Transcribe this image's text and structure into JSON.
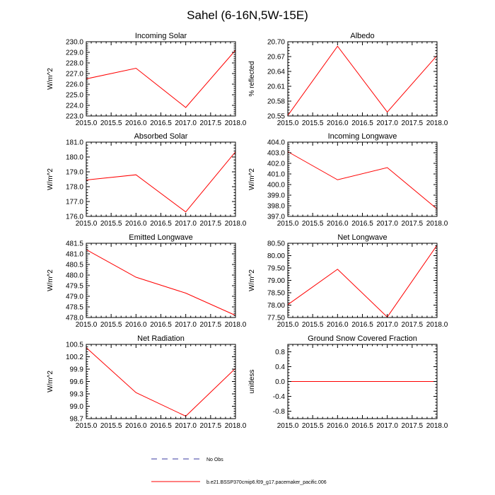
{
  "title": "Sahel (6-16N,5W-15E)",
  "colors": {
    "model": "#ff0000",
    "obs": "#3a3aa0",
    "axis": "#000000"
  },
  "legend": {
    "obs_label": "No Obs",
    "model_label": "b.e21.BSSP370cmip6.f09_g17.pacemaker_pacific.006"
  },
  "chart_data": [
    {
      "type": "line",
      "title": "Incoming Solar",
      "xlabel": "",
      "ylabel": "W/m^2",
      "x": [
        2015.0,
        2016.0,
        2017.0,
        2018.0
      ],
      "xlim": [
        2015.0,
        2018.0
      ],
      "xticks": [
        "2015.0",
        "2015.5",
        "2016.0",
        "2016.5",
        "2017.0",
        "2017.5",
        "2018.0"
      ],
      "ylim": [
        223.0,
        230.0
      ],
      "yticks": [
        "223.0",
        "224.0",
        "225.0",
        "226.0",
        "227.0",
        "228.0",
        "229.0",
        "230.0"
      ],
      "series": [
        {
          "values": [
            226.5,
            227.5,
            223.8,
            229.2
          ]
        }
      ]
    },
    {
      "type": "line",
      "title": "Albedo",
      "xlabel": "",
      "ylabel": "% reflected",
      "x": [
        2015.0,
        2016.0,
        2017.0,
        2018.0
      ],
      "xlim": [
        2015.0,
        2018.0
      ],
      "xticks": [
        "2015.0",
        "2015.5",
        "2016.0",
        "2016.5",
        "2017.0",
        "2017.5",
        "2018.0"
      ],
      "ylim": [
        20.55,
        20.7
      ],
      "yticks": [
        "20.55",
        "20.58",
        "20.61",
        "20.64",
        "20.67",
        "20.70"
      ],
      "series": [
        {
          "values": [
            20.551,
            20.691,
            20.558,
            20.672
          ]
        }
      ]
    },
    {
      "type": "line",
      "title": "Absorbed Solar",
      "xlabel": "",
      "ylabel": "W/m^2",
      "x": [
        2015.0,
        2016.0,
        2017.0,
        2018.0
      ],
      "xlim": [
        2015.0,
        2018.0
      ],
      "xticks": [
        "2015.0",
        "2015.5",
        "2016.0",
        "2016.5",
        "2017.0",
        "2017.5",
        "2018.0"
      ],
      "ylim": [
        176.0,
        181.0
      ],
      "yticks": [
        "176.0",
        "177.0",
        "178.0",
        "179.0",
        "180.0",
        "181.0"
      ],
      "series": [
        {
          "values": [
            178.45,
            178.8,
            176.3,
            180.35
          ]
        }
      ]
    },
    {
      "type": "line",
      "title": "Incoming Longwave",
      "xlabel": "",
      "ylabel": "W/m^2",
      "x": [
        2015.0,
        2016.0,
        2017.0,
        2018.0
      ],
      "xlim": [
        2015.0,
        2018.0
      ],
      "xticks": [
        "2015.0",
        "2015.5",
        "2016.0",
        "2016.5",
        "2017.0",
        "2017.5",
        "2018.0"
      ],
      "ylim": [
        397.0,
        404.0
      ],
      "yticks": [
        "397.0",
        "398.0",
        "399.0",
        "400.0",
        "401.0",
        "402.0",
        "403.0",
        "404.0"
      ],
      "series": [
        {
          "values": [
            403.1,
            400.45,
            401.6,
            397.7
          ]
        }
      ]
    },
    {
      "type": "line",
      "title": "Emitted Longwave",
      "xlabel": "",
      "ylabel": "W/m^2",
      "x": [
        2015.0,
        2016.0,
        2017.0,
        2018.0
      ],
      "xlim": [
        2015.0,
        2018.0
      ],
      "xticks": [
        "2015.0",
        "2015.5",
        "2016.0",
        "2016.5",
        "2017.0",
        "2017.5",
        "2018.0"
      ],
      "ylim": [
        478.0,
        481.5
      ],
      "yticks": [
        "478.0",
        "478.5",
        "479.0",
        "479.5",
        "480.0",
        "480.5",
        "481.0",
        "481.5"
      ],
      "series": [
        {
          "values": [
            481.2,
            479.9,
            479.15,
            478.1
          ]
        }
      ]
    },
    {
      "type": "line",
      "title": "Net Longwave",
      "xlabel": "",
      "ylabel": "W/m^2",
      "x": [
        2015.0,
        2016.0,
        2017.0,
        2018.0
      ],
      "xlim": [
        2015.0,
        2018.0
      ],
      "xticks": [
        "2015.0",
        "2015.5",
        "2016.0",
        "2016.5",
        "2017.0",
        "2017.5",
        "2018.0"
      ],
      "ylim": [
        77.5,
        80.5
      ],
      "yticks": [
        "77.50",
        "78.00",
        "78.50",
        "79.00",
        "79.50",
        "80.00",
        "80.50"
      ],
      "series": [
        {
          "values": [
            78.02,
            79.45,
            77.52,
            80.42
          ]
        }
      ]
    },
    {
      "type": "line",
      "title": "Net Radiation",
      "xlabel": "",
      "ylabel": "W/m^2",
      "x": [
        2015.0,
        2016.0,
        2017.0,
        2018.0
      ],
      "xlim": [
        2015.0,
        2018.0
      ],
      "xticks": [
        "2015.0",
        "2015.5",
        "2016.0",
        "2016.5",
        "2017.0",
        "2017.5",
        "2018.0"
      ],
      "ylim": [
        98.7,
        100.5
      ],
      "yticks": [
        "98.7",
        "99.0",
        "99.3",
        "99.6",
        "99.9",
        "100.2",
        "100.5"
      ],
      "series": [
        {
          "values": [
            100.42,
            99.33,
            98.76,
            99.92
          ]
        }
      ]
    },
    {
      "type": "line",
      "title": "Ground Snow Covered Fraction",
      "xlabel": "",
      "ylabel": "unitless",
      "x": [
        2015.0,
        2016.0,
        2017.0,
        2018.0
      ],
      "xlim": [
        2015.0,
        2018.0
      ],
      "xticks": [
        "2015.0",
        "2015.5",
        "2016.0",
        "2016.5",
        "2017.0",
        "2017.5",
        "2018.0"
      ],
      "ylim": [
        -1.0,
        1.0
      ],
      "yticks": [
        "-0.8",
        "-0.4",
        "0.0",
        "0.4",
        "0.8"
      ],
      "ytick_values": [
        -0.8,
        -0.4,
        0.0,
        0.4,
        0.8
      ],
      "series": [
        {
          "values": [
            0.0,
            0.0,
            0.0,
            0.0
          ]
        }
      ]
    }
  ]
}
